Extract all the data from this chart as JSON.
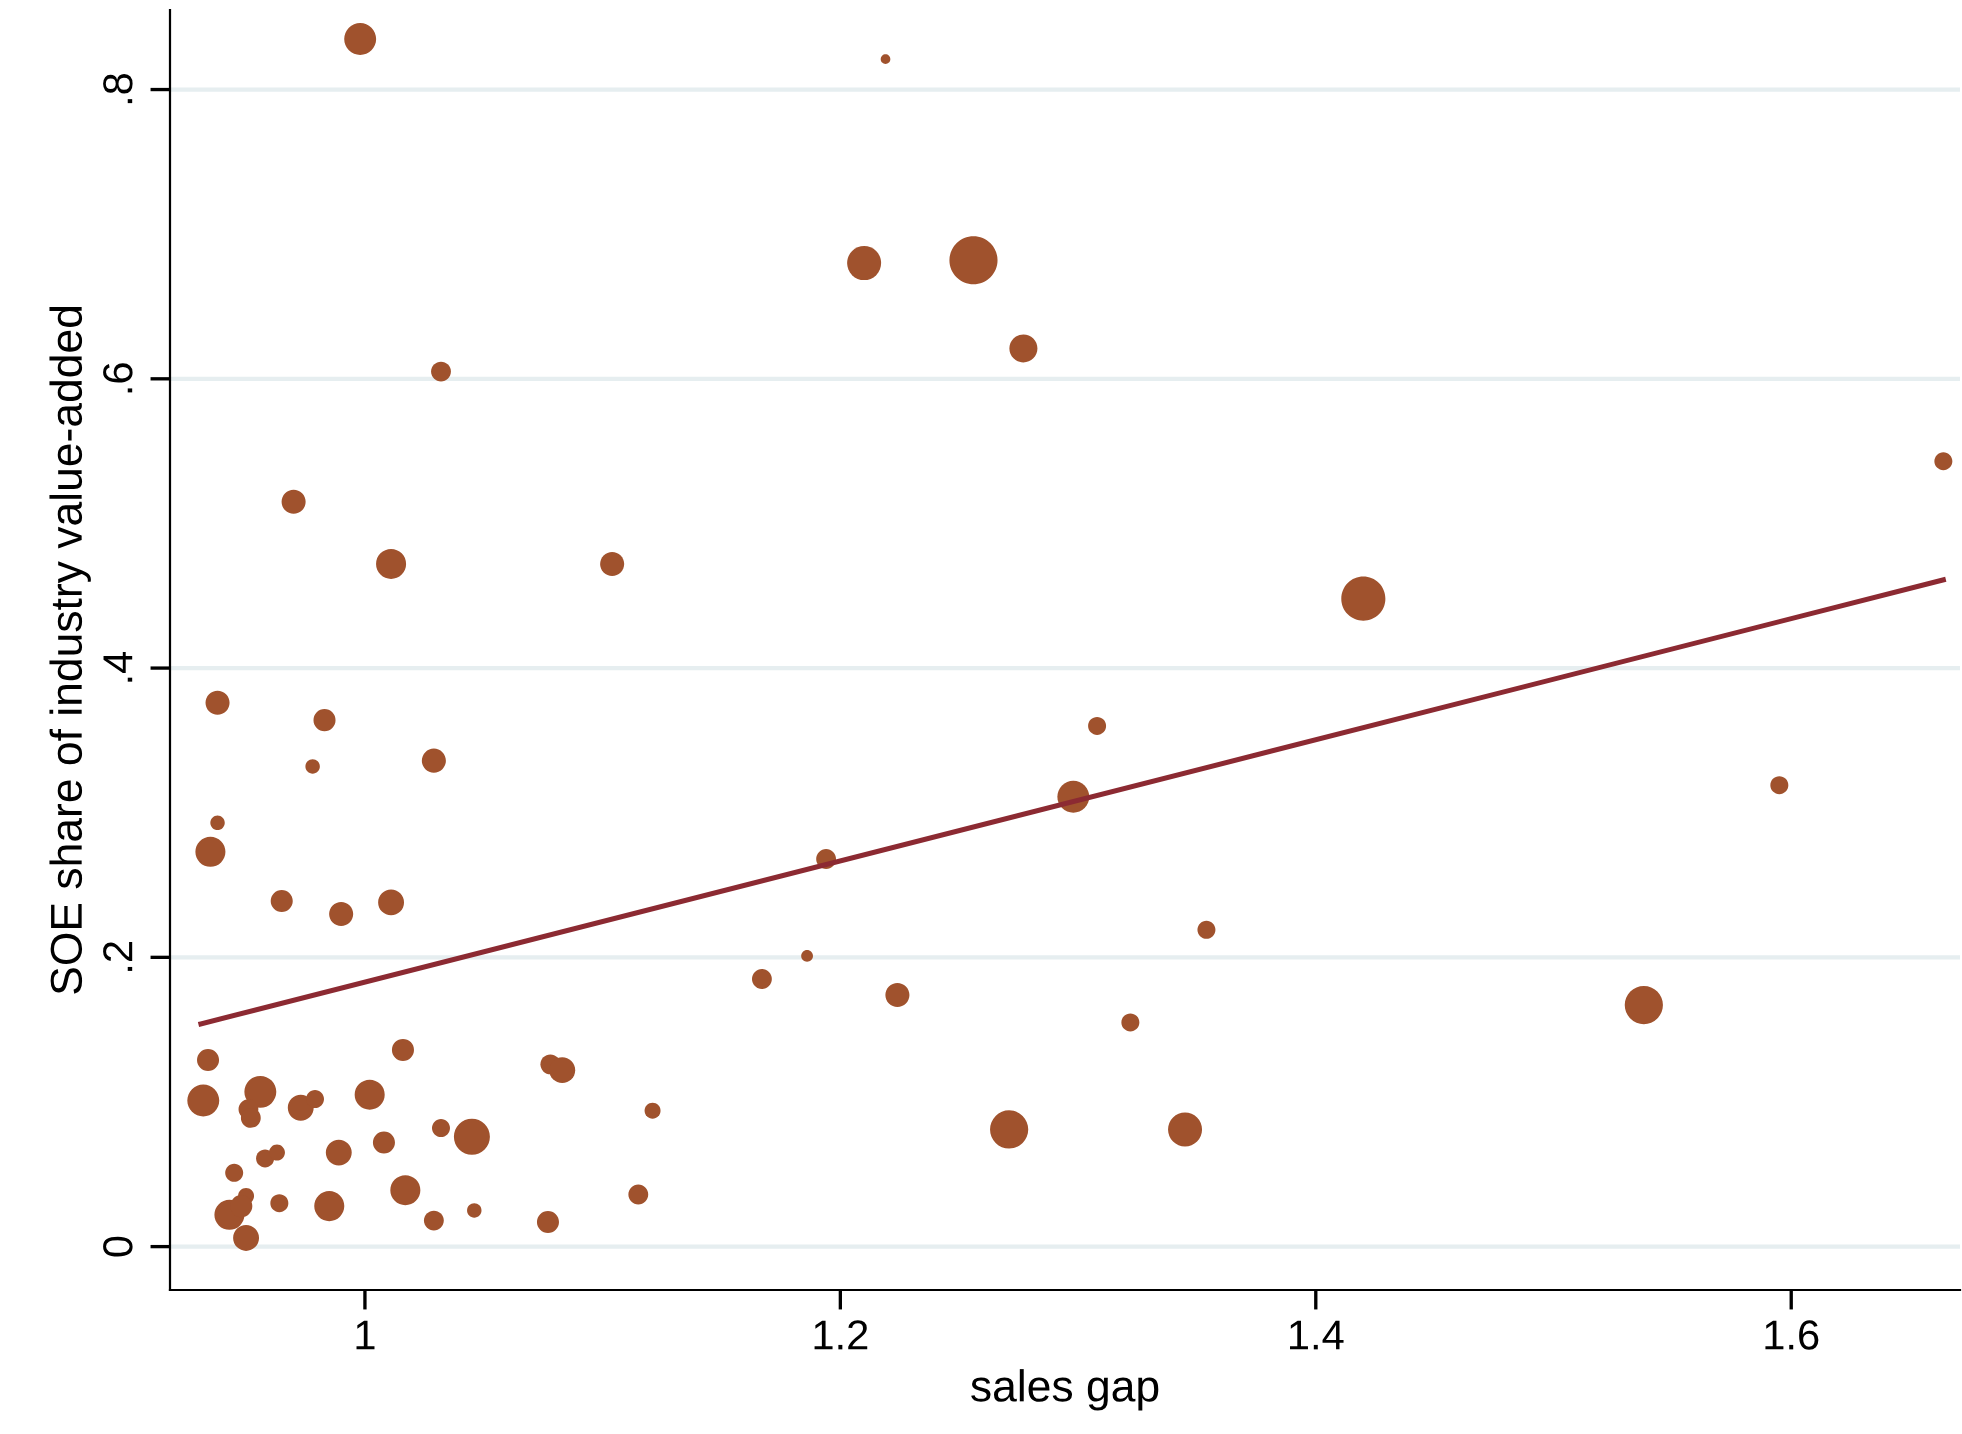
{
  "chart_data": {
    "type": "bubble",
    "xlabel": "sales gap",
    "ylabel": "SOE share of industry value-added",
    "xlim": [
      0.918,
      1.671
    ],
    "ylim": [
      -0.03,
      0.855
    ],
    "xticks": [
      1,
      1.2,
      1.4,
      1.6
    ],
    "yticks": [
      0,
      {
        "value": 0.2,
        "label": ".2"
      },
      {
        "value": 0.4,
        "label": ".4"
      },
      {
        "value": 0.6,
        "label": ".6"
      },
      {
        "value": 0.8,
        "label": ".8"
      }
    ],
    "grid": "y",
    "legend": false,
    "series": [
      {
        "color": "#a0522d",
        "x": [
          0.998,
          1.032,
          0.97,
          1.011,
          1.104,
          0.938,
          0.983,
          0.978,
          1.029,
          0.938,
          0.935,
          0.965,
          0.99,
          1.011,
          0.934,
          0.932,
          0.956,
          0.951,
          0.952,
          0.973,
          0.979,
          1.002,
          1.016,
          1.078,
          1.083,
          1.121,
          1.032,
          1.045,
          1.008,
          0.989,
          0.958,
          0.963,
          0.945,
          1.017,
          0.985,
          0.964,
          0.95,
          0.943,
          0.948,
          0.95,
          1.029,
          1.046,
          1.077,
          1.115,
          1.219,
          1.21,
          1.256,
          1.277,
          1.664,
          1.42,
          1.308,
          1.298,
          1.194,
          1.595,
          1.354,
          1.167,
          1.186,
          1.224,
          1.322,
          1.538,
          1.271,
          1.345
        ],
        "values": [
          0.835,
          0.605,
          0.515,
          0.472,
          0.472,
          0.376,
          0.364,
          0.332,
          0.336,
          0.293,
          0.273,
          0.239,
          0.23,
          0.238,
          0.129,
          0.101,
          0.107,
          0.095,
          0.089,
          0.096,
          0.102,
          0.105,
          0.136,
          0.126,
          0.122,
          0.094,
          0.082,
          0.076,
          0.072,
          0.065,
          0.061,
          0.065,
          0.051,
          0.039,
          0.028,
          0.03,
          0.035,
          0.022,
          0.028,
          0.006,
          0.018,
          0.025,
          0.017,
          0.036,
          0.821,
          0.68,
          0.682,
          0.621,
          0.543,
          0.448,
          0.36,
          0.311,
          0.268,
          0.319,
          0.219,
          0.185,
          0.201,
          0.174,
          0.155,
          0.167,
          0.081,
          0.081
        ],
        "sizes": [
          0.44,
          0.17,
          0.25,
          0.39,
          0.25,
          0.25,
          0.21,
          0.09,
          0.25,
          0.09,
          0.39,
          0.21,
          0.25,
          0.29,
          0.21,
          0.44,
          0.44,
          0.17,
          0.17,
          0.29,
          0.14,
          0.39,
          0.21,
          0.17,
          0.29,
          0.11,
          0.14,
          0.56,
          0.21,
          0.29,
          0.14,
          0.11,
          0.14,
          0.39,
          0.39,
          0.14,
          0.11,
          0.39,
          0.21,
          0.29,
          0.17,
          0.09,
          0.21,
          0.17,
          0.04,
          0.5,
          1,
          0.34,
          0.14,
          0.84,
          0.14,
          0.44,
          0.17,
          0.14,
          0.14,
          0.17,
          0.06,
          0.25,
          0.14,
          0.63,
          0.63,
          0.5
        ]
      },
      {
        "type": "line",
        "color": "#8c2a32",
        "x": [
          0.931,
          1.664
        ],
        "values": [
          0.154,
          0.461
        ]
      }
    ]
  }
}
